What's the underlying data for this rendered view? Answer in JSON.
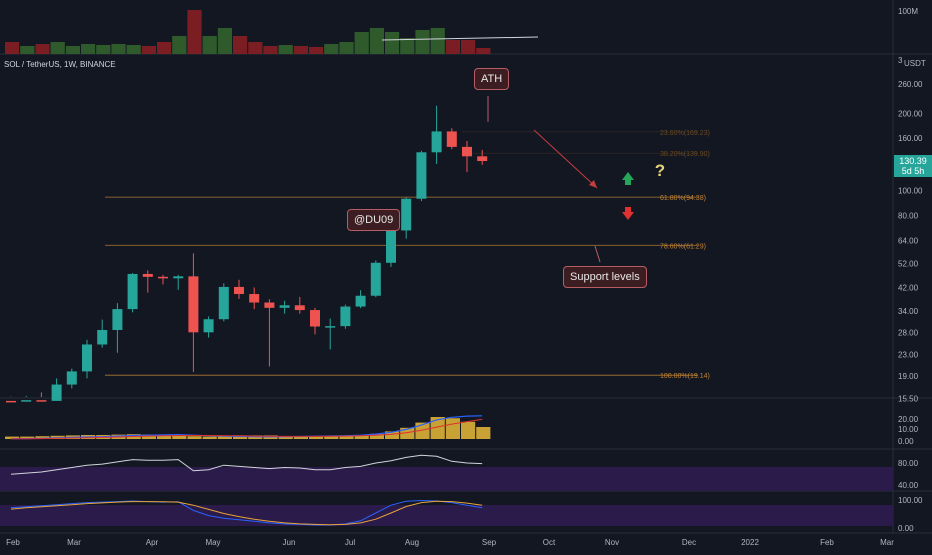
{
  "symbol": "SOL / TetherUS, 1W, BINANCE",
  "currency": "USDT",
  "volume_scale_label": "100M",
  "volume_axis_small_label": "3",
  "last_price": "130.39",
  "time_remaining": "5d 5h",
  "price_axis": [
    "260.00",
    "200.00",
    "160.00",
    "100.00",
    "80.00",
    "64.00",
    "52.00",
    "42.00",
    "34.00",
    "28.00",
    "23.00",
    "19.00",
    "15.50"
  ],
  "price_axis_partial": "130",
  "macd_axis": [
    "20.00",
    "10.00",
    "0.00"
  ],
  "rsi_axis": [
    "80.00",
    "40.00"
  ],
  "stoch_axis": [
    "100.00",
    "0.00"
  ],
  "time_axis": [
    "Feb",
    "Mar",
    "Apr",
    "May",
    "Jun",
    "Jul",
    "Aug",
    "Sep",
    "Oct",
    "Nov",
    "Dec",
    "2022",
    "Feb",
    "Mar"
  ],
  "fib_levels": [
    {
      "label": "61.80%(94.38)",
      "value": 94.38,
      "dim": false
    },
    {
      "label": "78.60%(61.29)",
      "value": 61.29,
      "dim": false
    },
    {
      "label": "100.00%(19.14)",
      "value": 19.14,
      "dim": false
    },
    {
      "label": "23.60%(169.23)",
      "value": 169.23,
      "dim": true
    },
    {
      "label": "38.20%(139.90)",
      "value": 139.9,
      "dim": true
    }
  ],
  "annotations": {
    "ath": "ATH",
    "author": "@DU09",
    "support": "Support levels",
    "question": "?"
  },
  "colors": {
    "bull": "#26a69a",
    "bear": "#ef5350",
    "fib": "#c28434",
    "macd_line": "#2962ff",
    "signal_line": "#e0302f",
    "histogram": "#c8a235",
    "rsi_line": "#d1d4dc",
    "band": "#2a1b4a",
    "up_arrow": "#26a65b",
    "down_arrow": "#e0302f",
    "question": "#e6d27a"
  },
  "chart_data": {
    "type": "candlestick",
    "scale": "log",
    "ohlc": [
      [
        15.2,
        15.8,
        14.7,
        15.1
      ],
      [
        15.1,
        15.9,
        14.9,
        15.3
      ],
      [
        15.3,
        16.4,
        15.0,
        15.2
      ],
      [
        15.2,
        18.6,
        14.9,
        17.6
      ],
      [
        17.6,
        20.3,
        17.0,
        19.8
      ],
      [
        19.8,
        26.3,
        18.6,
        25.2
      ],
      [
        25.2,
        31.5,
        24.5,
        28.7
      ],
      [
        28.7,
        36.5,
        23.4,
        34.6
      ],
      [
        34.6,
        47.8,
        33.6,
        47.4
      ],
      [
        47.4,
        49.0,
        40.1,
        46.2
      ],
      [
        46.2,
        47.0,
        43.2,
        45.6
      ],
      [
        45.6,
        47.0,
        41.1,
        46.4
      ],
      [
        46.4,
        57.0,
        19.7,
        28.1
      ],
      [
        28.1,
        32.4,
        26.8,
        31.6
      ],
      [
        31.6,
        43.6,
        31.0,
        42.2
      ],
      [
        42.2,
        45.0,
        37.9,
        39.6
      ],
      [
        39.6,
        42.0,
        34.6,
        36.7
      ],
      [
        36.7,
        37.8,
        20.7,
        35.0
      ],
      [
        35.0,
        37.3,
        33.2,
        35.8
      ],
      [
        35.8,
        38.6,
        33.2,
        34.3
      ],
      [
        34.3,
        35.0,
        27.6,
        29.6
      ],
      [
        29.6,
        31.8,
        24.1,
        29.7
      ],
      [
        29.7,
        36.0,
        29.0,
        35.4
      ],
      [
        35.4,
        41.0,
        34.9,
        39.0
      ],
      [
        39.0,
        53.5,
        38.5,
        52.4
      ],
      [
        52.4,
        72.0,
        50.5,
        70.0
      ],
      [
        70.0,
        94.0,
        65.0,
        93.0
      ],
      [
        93.0,
        143.0,
        91.0,
        141.0
      ],
      [
        141.0,
        214.0,
        127.0,
        170.0
      ],
      [
        170.0,
        175.0,
        145.0,
        148.0
      ],
      [
        148.0,
        156.0,
        118.0,
        136.0
      ],
      [
        136.0,
        144.0,
        126.0,
        130.39
      ]
    ]
  }
}
